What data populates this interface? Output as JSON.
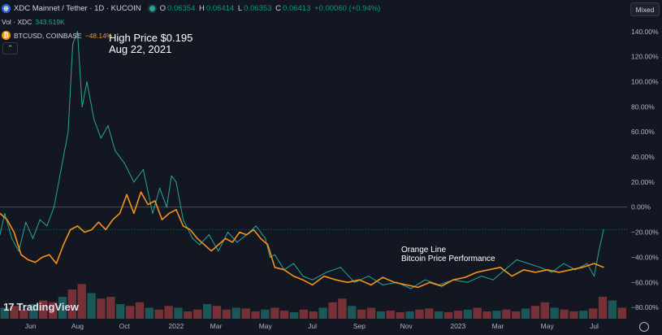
{
  "header": {
    "symbol_title": "XDC Mainnet / Tether · 1D · KUCOIN",
    "ohlc": {
      "o_label": "O",
      "o_value": "0.06354",
      "h_label": "H",
      "h_value": "0.06414",
      "l_label": "L",
      "l_value": "0.06353",
      "c_label": "C",
      "c_value": "0.06413",
      "change": "+0.00060 (+0.94%)"
    },
    "volume_label": "Vol · XDC",
    "volume_value": "343.519K",
    "compare_symbol": "BTCUSD, COINBASE",
    "compare_change": "−48.14%",
    "scale_mode": "Mixed",
    "collapse_glyph": "⌃"
  },
  "brand": {
    "name": "TradingView",
    "mark": "17"
  },
  "annotations": {
    "high_line1": "High Price $0.195",
    "high_line2": "Aug 22, 2021",
    "orange_line1": "Orange Line",
    "orange_line2": "Bitcoin Price Performance"
  },
  "colors": {
    "background": "#131722",
    "up": "#26a69a",
    "down": "#ef5350",
    "btc": "#f7931a",
    "text": "#d1d4dc"
  },
  "chart_data": {
    "type": "line",
    "y_axis_label_unit": "%",
    "y_ticks": [
      "140.00%",
      "120.00%",
      "100.00%",
      "80.00%",
      "60.00%",
      "40.00%",
      "20.00%",
      "0.00%",
      "−20.00%",
      "−40.00%",
      "−60.00%",
      "−80.00%"
    ],
    "y_tick_values": [
      140,
      120,
      100,
      80,
      60,
      40,
      20,
      0,
      -20,
      -40,
      -60,
      -80
    ],
    "ylim": [
      -89,
      147
    ],
    "x_ticks": [
      "Jun",
      "Aug",
      "Oct",
      "2022",
      "Mar",
      "May",
      "Jul",
      "Sep",
      "Nov",
      "2023",
      "Mar",
      "May",
      "Jul"
    ],
    "x_tick_positions": [
      0.8,
      2.8,
      4.8,
      7.0,
      8.7,
      10.8,
      12.8,
      14.8,
      16.8,
      19.0,
      20.7,
      22.8,
      24.8
    ],
    "xlim": [
      -0.5,
      26.2
    ],
    "grid": false,
    "zero_line": true,
    "series": [
      {
        "name": "XDC Mainnet / Tether",
        "color": "#26a69a",
        "x": [
          -0.5,
          -0.3,
          0.0,
          0.3,
          0.6,
          0.9,
          1.2,
          1.5,
          1.8,
          2.1,
          2.4,
          2.6,
          2.8,
          3.0,
          3.2,
          3.5,
          3.8,
          4.1,
          4.4,
          4.8,
          5.2,
          5.6,
          6.0,
          6.3,
          6.6,
          6.8,
          7.0,
          7.3,
          7.7,
          8.0,
          8.4,
          8.8,
          9.2,
          9.6,
          10.0,
          10.4,
          10.8,
          11.0,
          11.2,
          11.6,
          12.0,
          12.4,
          12.8,
          13.4,
          14.0,
          14.6,
          15.2,
          15.8,
          16.4,
          17.0,
          17.6,
          18.2,
          18.8,
          19.4,
          20.0,
          20.5,
          21.0,
          21.5,
          22.0,
          22.5,
          23.0,
          23.5,
          24.0,
          24.5,
          24.8,
          25.0,
          25.2
        ],
        "values": [
          -22,
          -5,
          -25,
          -35,
          -12,
          -25,
          -10,
          -15,
          0,
          30,
          60,
          130,
          140,
          80,
          100,
          70,
          55,
          65,
          45,
          35,
          20,
          30,
          -5,
          15,
          0,
          25,
          20,
          -10,
          -25,
          -30,
          -22,
          -35,
          -20,
          -28,
          -22,
          -15,
          -25,
          -40,
          -38,
          -50,
          -45,
          -55,
          -58,
          -52,
          -48,
          -60,
          -55,
          -62,
          -60,
          -65,
          -58,
          -62,
          -58,
          -60,
          -55,
          -58,
          -50,
          -42,
          -45,
          -48,
          -52,
          -45,
          -50,
          -45,
          -55,
          -35,
          -18
        ]
      },
      {
        "name": "BTCUSD, COINBASE",
        "color": "#f7931a",
        "x": [
          -0.5,
          -0.2,
          0.1,
          0.4,
          0.7,
          1.0,
          1.3,
          1.6,
          1.9,
          2.2,
          2.5,
          2.8,
          3.1,
          3.4,
          3.7,
          4.0,
          4.3,
          4.6,
          4.9,
          5.2,
          5.5,
          5.8,
          6.1,
          6.4,
          6.7,
          7.0,
          7.3,
          7.6,
          7.9,
          8.2,
          8.5,
          8.8,
          9.1,
          9.4,
          9.7,
          10.0,
          10.3,
          10.6,
          10.9,
          11.2,
          11.6,
          12.0,
          12.4,
          12.8,
          13.3,
          13.8,
          14.3,
          14.8,
          15.3,
          15.8,
          16.3,
          16.8,
          17.3,
          17.8,
          18.3,
          18.8,
          19.3,
          19.8,
          20.3,
          20.8,
          21.3,
          21.8,
          22.3,
          22.8,
          23.3,
          23.8,
          24.3,
          24.8,
          25.2
        ],
        "values": [
          -5,
          -10,
          -20,
          -38,
          -42,
          -44,
          -40,
          -38,
          -45,
          -30,
          -18,
          -15,
          -20,
          -18,
          -12,
          -18,
          -10,
          -5,
          10,
          -5,
          12,
          2,
          5,
          -10,
          -5,
          -2,
          -15,
          -18,
          -25,
          -30,
          -35,
          -30,
          -25,
          -28,
          -20,
          -22,
          -18,
          -25,
          -30,
          -48,
          -50,
          -55,
          -58,
          -62,
          -55,
          -58,
          -60,
          -58,
          -62,
          -56,
          -60,
          -62,
          -64,
          -60,
          -63,
          -58,
          -56,
          -52,
          -50,
          -48,
          -55,
          -50,
          -52,
          -50,
          -52,
          -50,
          -48,
          -45,
          -48
        ]
      }
    ],
    "volume": {
      "color_up": "#26a69a",
      "color_down": "#ef5350",
      "values": [
        30,
        35,
        25,
        40,
        50,
        45,
        60,
        80,
        95,
        70,
        55,
        60,
        40,
        35,
        45,
        30,
        25,
        35,
        30,
        20,
        25,
        40,
        35,
        25,
        30,
        28,
        20,
        25,
        30,
        22,
        18,
        25,
        20,
        30,
        45,
        55,
        35,
        25,
        30,
        20,
        22,
        18,
        20,
        25,
        28,
        20,
        18,
        22,
        25,
        30,
        20,
        22,
        25,
        20,
        28,
        35,
        45,
        30,
        25,
        20,
        22,
        28,
        60,
        50,
        30
      ]
    }
  }
}
